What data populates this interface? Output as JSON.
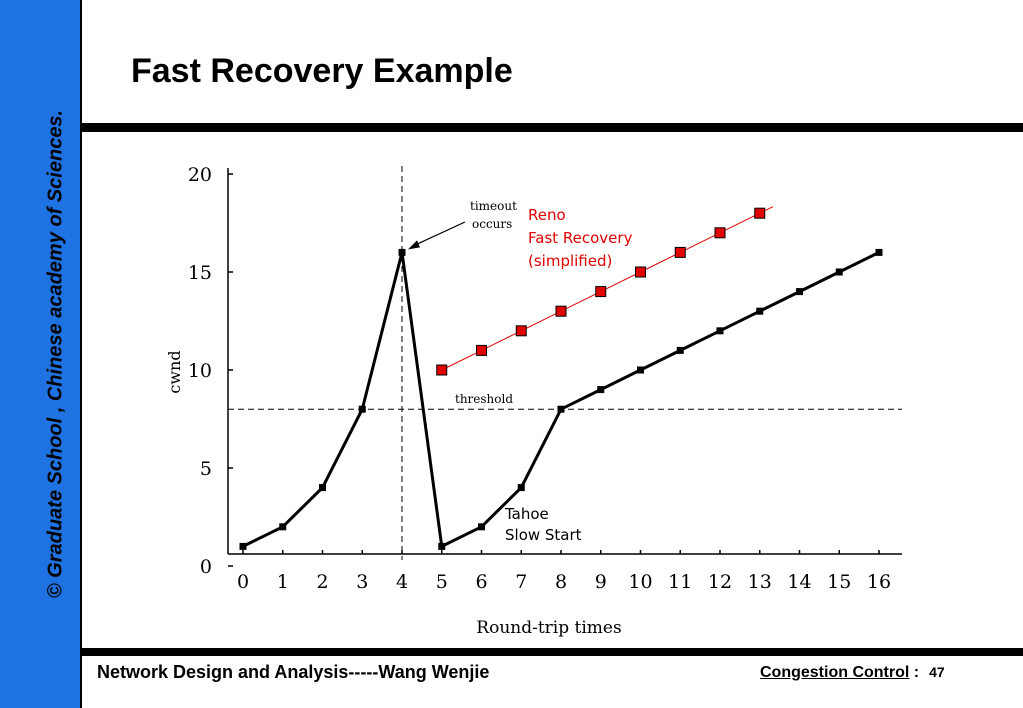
{
  "slide": {
    "title": "Fast Recovery Example",
    "sidebar": "© Graduate School , Chinese academy of Sciences.",
    "footer_left": "Network Design and Analysis-----Wang Wenjie",
    "footer_section": "Congestion Control",
    "footer_sep": " :",
    "page_number": "47",
    "sidebar_color": "#1f72e2"
  },
  "chart_data": {
    "type": "line",
    "xlabel": "Round-trip times",
    "ylabel": "cwnd",
    "x_ticks": [
      0,
      1,
      2,
      3,
      4,
      5,
      6,
      7,
      8,
      9,
      10,
      11,
      12,
      13,
      14,
      15,
      16
    ],
    "y_ticks": [
      0,
      5,
      10,
      15,
      20
    ],
    "xlim": [
      0,
      16
    ],
    "ylim": [
      0,
      20
    ],
    "threshold": {
      "value": 8,
      "label": "threshold"
    },
    "timeout": {
      "x": 4,
      "label_line1": "timeout",
      "label_line2": "occurs"
    },
    "series": [
      {
        "name": "Tahoe Slow Start",
        "label_line1": "Tahoe",
        "label_line2": "Slow Start",
        "color": "#000000",
        "x": [
          0,
          1,
          2,
          3,
          4,
          5,
          6,
          7,
          8,
          9,
          10,
          11,
          12,
          13,
          14,
          15,
          16
        ],
        "y": [
          1,
          2,
          4,
          8,
          16,
          1,
          2,
          4,
          8,
          9,
          10,
          11,
          12,
          13,
          14,
          15,
          16
        ]
      },
      {
        "name": "Reno Fast Recovery (simplified)",
        "label_line1": "Reno",
        "label_line2": "Fast Recovery",
        "label_line3": "(simplified)",
        "color": "#e00000",
        "x": [
          5,
          6,
          7,
          8,
          9,
          10,
          11,
          12,
          13
        ],
        "y": [
          10,
          11,
          12,
          13,
          14,
          15,
          16,
          17,
          18
        ]
      }
    ]
  }
}
